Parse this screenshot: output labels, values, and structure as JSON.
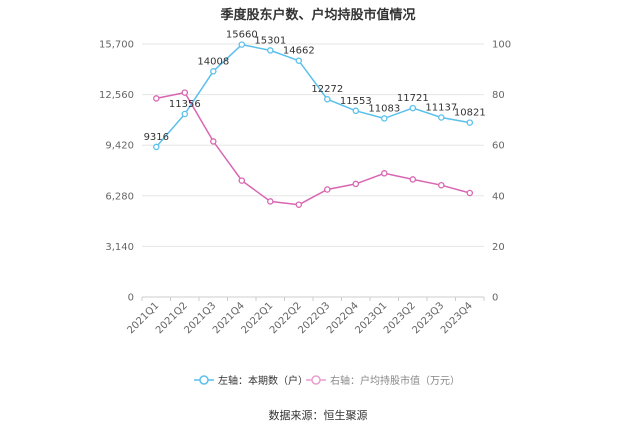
{
  "chart_data": {
    "type": "line",
    "title": "季度股东户数、户均持股市值情况",
    "categories": [
      "2021Q1",
      "2021Q2",
      "2021Q3",
      "2021Q4",
      "2022Q1",
      "2022Q2",
      "2022Q3",
      "2022Q4",
      "2023Q1",
      "2023Q2",
      "2023Q3",
      "2023Q4"
    ],
    "left_axis": {
      "min": 0,
      "max": 15700,
      "ticks": [
        "0",
        "3,140",
        "6,280",
        "9,420",
        "12,560",
        "15,700"
      ]
    },
    "right_axis": {
      "min": 0,
      "max": 100,
      "ticks": [
        "0",
        "20",
        "40",
        "60",
        "80",
        "100"
      ]
    },
    "series": [
      {
        "name": "左轴：本期数（户）",
        "axis": "left",
        "color": "#5bc0eb",
        "values": [
          9316,
          11356,
          14008,
          15660,
          15301,
          14662,
          12272,
          11553,
          11083,
          11721,
          11137,
          10821
        ],
        "labels": [
          "9316",
          "11356",
          "14008",
          "15660",
          "15301",
          "14662",
          "12272",
          "11553",
          "11083",
          "11721",
          "11137",
          "10821"
        ]
      },
      {
        "name": "右轴：户均持股市值（万元）",
        "axis": "right",
        "color": "#d966b2",
        "values": [
          78.5,
          80.8,
          61.5,
          46.0,
          37.8,
          36.5,
          42.5,
          44.7,
          48.9,
          46.5,
          44.2,
          41.1
        ]
      }
    ],
    "legend_position": "bottom-center",
    "grid": true
  },
  "source": "数据来源：恒生聚源"
}
